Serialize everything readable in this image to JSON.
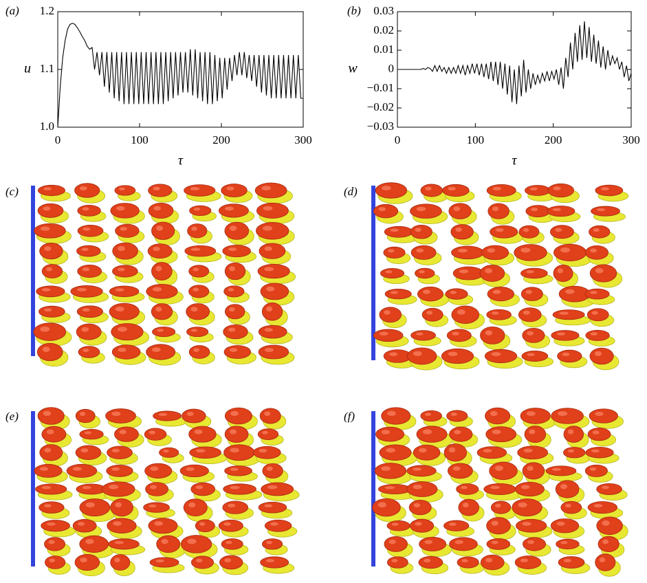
{
  "chart_data": [
    {
      "type": "line",
      "panel_label": "(a)",
      "xlabel": "τ",
      "ylabel": "u",
      "color": "#000000",
      "xlim": [
        0,
        300
      ],
      "xticks": [
        0,
        100,
        200,
        300
      ],
      "ylim": [
        1.0,
        1.2
      ],
      "yticks": [
        {
          "value": 1.0,
          "label": "1.0"
        },
        1.1,
        {
          "value": 1.2,
          "label": "1.2"
        }
      ],
      "x": [
        0,
        3,
        6,
        9,
        12,
        15,
        18,
        21,
        24,
        27,
        30,
        33,
        36,
        39,
        42,
        45,
        48,
        51,
        54,
        57,
        60,
        63,
        66,
        69,
        72,
        75,
        78,
        81,
        84,
        87,
        90,
        93,
        96,
        99,
        102,
        105,
        108,
        111,
        114,
        117,
        120,
        123,
        126,
        129,
        132,
        135,
        138,
        141,
        144,
        147,
        150,
        153,
        156,
        159,
        162,
        165,
        168,
        171,
        174,
        177,
        180,
        183,
        186,
        189,
        192,
        195,
        198,
        201,
        204,
        207,
        210,
        213,
        216,
        219,
        222,
        225,
        228,
        231,
        234,
        237,
        240,
        243,
        246,
        249,
        252,
        255,
        258,
        261,
        264,
        267,
        270,
        273,
        276,
        279,
        282,
        285,
        288,
        291,
        294,
        297,
        300
      ],
      "values": [
        1.0,
        1.07,
        1.12,
        1.15,
        1.17,
        1.178,
        1.18,
        1.178,
        1.172,
        1.165,
        1.157,
        1.15,
        1.14,
        1.135,
        1.138,
        1.1,
        1.13,
        1.09,
        1.13,
        1.07,
        1.13,
        1.06,
        1.13,
        1.05,
        1.13,
        1.045,
        1.13,
        1.04,
        1.13,
        1.04,
        1.13,
        1.04,
        1.13,
        1.04,
        1.13,
        1.04,
        1.13,
        1.04,
        1.13,
        1.04,
        1.13,
        1.04,
        1.13,
        1.04,
        1.13,
        1.045,
        1.13,
        1.05,
        1.13,
        1.055,
        1.13,
        1.06,
        1.13,
        1.06,
        1.135,
        1.055,
        1.135,
        1.05,
        1.13,
        1.045,
        1.13,
        1.04,
        1.13,
        1.04,
        1.125,
        1.045,
        1.12,
        1.05,
        1.12,
        1.065,
        1.12,
        1.08,
        1.125,
        1.09,
        1.13,
        1.09,
        1.13,
        1.085,
        1.125,
        1.08,
        1.125,
        1.07,
        1.125,
        1.06,
        1.125,
        1.055,
        1.125,
        1.05,
        1.125,
        1.05,
        1.125,
        1.05,
        1.125,
        1.05,
        1.125,
        1.05,
        1.125,
        1.05,
        1.125,
        1.05,
        1.05
      ]
    },
    {
      "type": "line",
      "panel_label": "(b)",
      "xlabel": "τ",
      "ylabel": "w",
      "color": "#000000",
      "xlim": [
        0,
        300
      ],
      "xticks": [
        0,
        100,
        200,
        300
      ],
      "ylim": [
        -0.03,
        0.03
      ],
      "yticks": [
        {
          "value": -0.03,
          "label": "−0.03"
        },
        {
          "value": -0.02,
          "label": "−0.02"
        },
        {
          "value": -0.01,
          "label": "−0.01"
        },
        0,
        0.01,
        0.02,
        0.03
      ],
      "x": [
        0,
        3,
        6,
        9,
        12,
        15,
        18,
        21,
        24,
        27,
        30,
        33,
        36,
        39,
        42,
        45,
        48,
        51,
        54,
        57,
        60,
        63,
        66,
        69,
        72,
        75,
        78,
        81,
        84,
        87,
        90,
        93,
        96,
        99,
        102,
        105,
        108,
        111,
        114,
        117,
        120,
        123,
        126,
        129,
        132,
        135,
        138,
        141,
        144,
        147,
        150,
        153,
        156,
        159,
        162,
        165,
        168,
        171,
        174,
        177,
        180,
        183,
        186,
        189,
        192,
        195,
        198,
        201,
        204,
        207,
        210,
        213,
        216,
        219,
        222,
        225,
        228,
        231,
        234,
        237,
        240,
        243,
        246,
        249,
        252,
        255,
        258,
        261,
        264,
        267,
        270,
        273,
        276,
        279,
        282,
        285,
        288,
        291,
        294,
        297,
        300
      ],
      "values": [
        0,
        0,
        0,
        0,
        0,
        0,
        0,
        0,
        0,
        0,
        0,
        0.0005,
        0,
        0.001,
        0.0005,
        -0.001,
        0.002,
        -0.001,
        0.002,
        -0.001,
        0.001,
        -0.002,
        0.001,
        -0.002,
        0.001,
        -0.002,
        0.002,
        -0.002,
        0.002,
        -0.003,
        0.002,
        -0.002,
        0.003,
        -0.002,
        0.003,
        -0.003,
        0.003,
        -0.004,
        0.003,
        -0.005,
        0.004,
        -0.006,
        0.004,
        -0.008,
        0.004,
        -0.01,
        0.003,
        -0.013,
        0.002,
        -0.017,
        0.0,
        -0.018,
        0.002,
        -0.014,
        0.005,
        -0.012,
        0.0,
        -0.01,
        -0.002,
        -0.008,
        -0.003,
        -0.007,
        -0.002,
        -0.006,
        -0.001,
        -0.006,
        -0.001,
        -0.005,
        0.0,
        -0.008,
        0.001,
        -0.01,
        0.006,
        -0.004,
        0.014,
        0.0,
        0.019,
        0.004,
        0.023,
        0.005,
        0.025,
        0.006,
        0.022,
        0.004,
        0.018,
        0.003,
        0.015,
        0.001,
        0.012,
        0.0,
        0.01,
        0.002,
        0.007,
        0.003,
        0.006,
        0.0,
        0.004,
        -0.004,
        0.002,
        -0.006,
        -0.002
      ]
    }
  ],
  "panels": [
    "(c)",
    "(d)",
    "(e)",
    "(f)"
  ]
}
